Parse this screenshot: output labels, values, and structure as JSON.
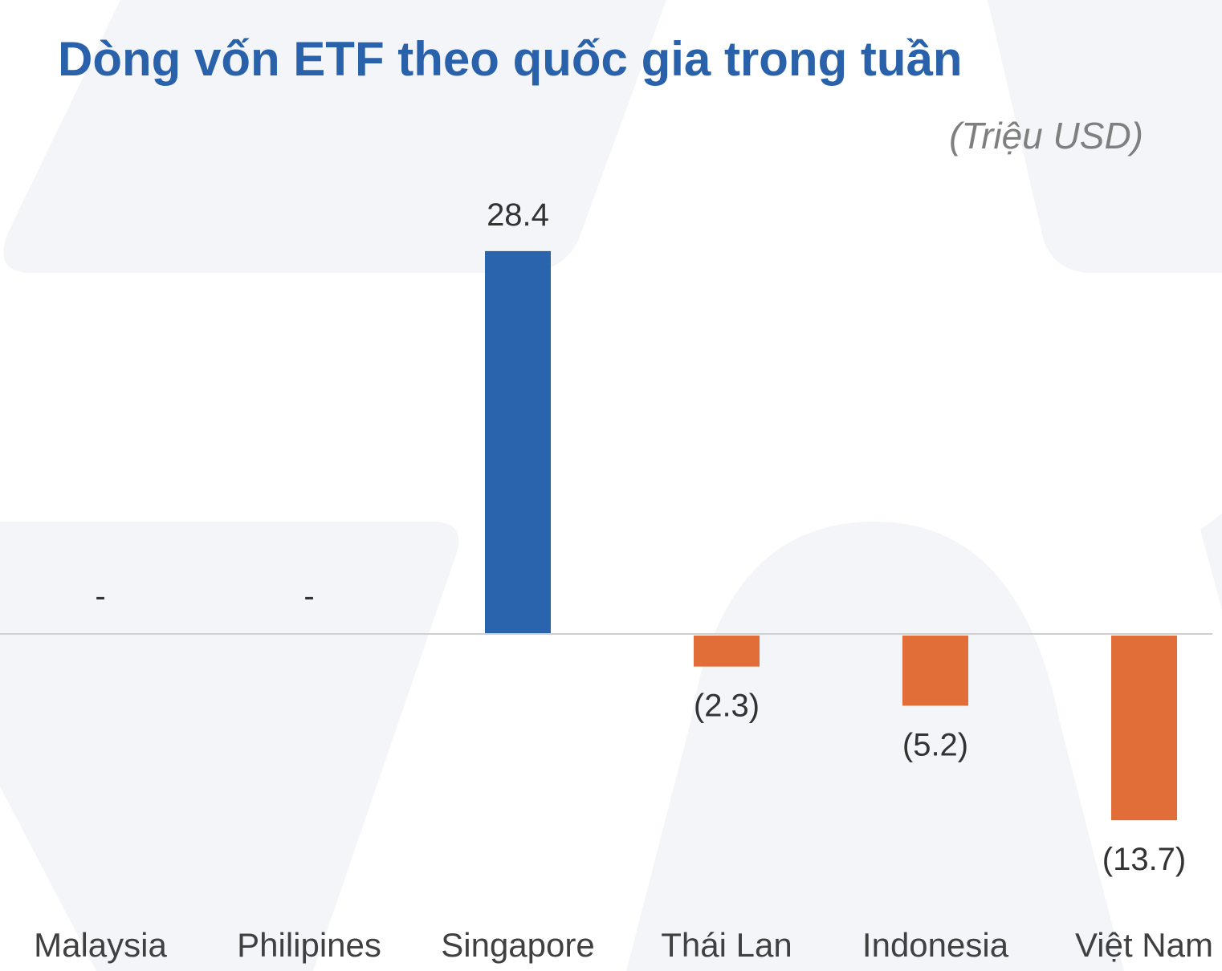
{
  "chart_data": {
    "type": "bar",
    "title": "Dòng vốn ETF theo quốc gia trong tuần",
    "unit_label": "(Triệu USD)",
    "categories": [
      "Malaysia",
      "Philipines",
      "Singapore",
      "Thái Lan",
      "Indonesia",
      "Việt Nam"
    ],
    "values": [
      0,
      0,
      28.4,
      -2.3,
      -5.2,
      -13.7
    ],
    "data_labels": [
      "-",
      "-",
      "28.4",
      "(2.3)",
      "(5.2)",
      "(13.7)"
    ],
    "colors": {
      "positive": "#2a64ad",
      "negative": "#e16d38",
      "axis": "#d0d0d0"
    },
    "xlabel": "",
    "ylabel": "",
    "grid": false,
    "legend": "none"
  }
}
